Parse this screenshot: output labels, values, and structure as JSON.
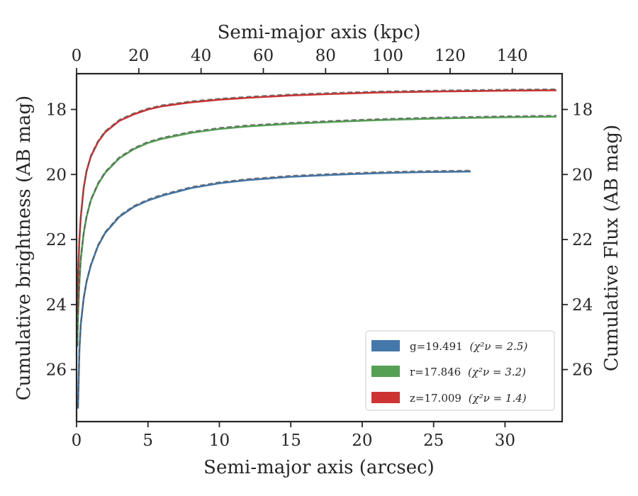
{
  "chart_data": {
    "type": "line",
    "xlabel": "Semi-major axis (arcsec)",
    "x2label": "Semi-major axis (kpc)",
    "ylabel": "Cumulative brightness (AB mag)",
    "y2label": "Cumulative Flux (AB mag)",
    "xlim": [
      0,
      34
    ],
    "x2lim": [
      0,
      156
    ],
    "ylim": [
      27.6,
      16.9
    ],
    "y_inverted": true,
    "xticks": [
      "0",
      "5",
      "10",
      "15",
      "20",
      "25",
      "30"
    ],
    "x2ticks": [
      "0",
      "20",
      "40",
      "60",
      "80",
      "100",
      "120",
      "140"
    ],
    "yticks": [
      "18",
      "20",
      "22",
      "24",
      "26"
    ],
    "grid": false,
    "legend_position": "lower-right",
    "series": [
      {
        "name": "g=19.491",
        "chi_label": "(χ²ν = 2.5)",
        "color": "#4477aa",
        "x": [
          0.1,
          0.2,
          0.3,
          0.5,
          0.7,
          1.0,
          1.5,
          2.0,
          3.0,
          4.0,
          5.0,
          6.0,
          8.0,
          10.0,
          12.0,
          15.0,
          18.0,
          21.0,
          24.0,
          27.6
        ],
        "y": [
          27.2,
          25.4,
          24.6,
          23.8,
          23.3,
          22.8,
          22.2,
          21.8,
          21.3,
          21.0,
          20.8,
          20.65,
          20.42,
          20.27,
          20.17,
          20.07,
          20.01,
          19.96,
          19.93,
          19.91
        ]
      },
      {
        "name": "r=17.846",
        "chi_label": "(χ²ν = 3.2)",
        "color": "#55a055",
        "x": [
          0.05,
          0.1,
          0.2,
          0.3,
          0.5,
          0.7,
          1.0,
          1.5,
          2.0,
          3.0,
          4.0,
          5.0,
          6.0,
          8.0,
          10.0,
          12.0,
          15.0,
          18.0,
          21.0,
          25.0,
          30.0,
          33.6
        ],
        "y": [
          25.3,
          24.4,
          23.3,
          22.6,
          21.8,
          21.3,
          20.8,
          20.3,
          19.95,
          19.5,
          19.22,
          19.03,
          18.9,
          18.72,
          18.6,
          18.52,
          18.44,
          18.38,
          18.33,
          18.28,
          18.24,
          18.22
        ]
      },
      {
        "name": "z=17.009",
        "chi_label": "(χ²ν = 1.4)",
        "color": "#cc3333",
        "x": [
          0.05,
          0.1,
          0.2,
          0.3,
          0.5,
          0.7,
          1.0,
          1.5,
          2.0,
          3.0,
          4.0,
          5.0,
          6.0,
          8.0,
          10.0,
          12.0,
          15.0,
          18.0,
          21.0,
          25.0,
          30.0,
          33.6
        ],
        "y": [
          24.3,
          23.2,
          22.0,
          21.3,
          20.4,
          19.9,
          19.45,
          19.0,
          18.7,
          18.35,
          18.15,
          18.0,
          17.9,
          17.78,
          17.7,
          17.64,
          17.57,
          17.52,
          17.48,
          17.45,
          17.42,
          17.41
        ]
      }
    ]
  }
}
